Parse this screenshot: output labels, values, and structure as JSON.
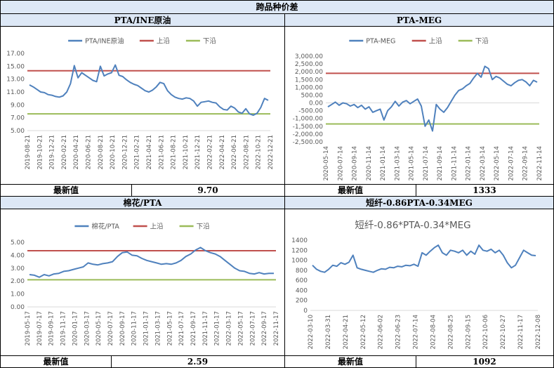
{
  "page_title": "跨品种价差",
  "chart_data": [
    {
      "id": "c1",
      "type": "line",
      "title": "PTA/INE原油",
      "header": "PTA/INE原油",
      "legend": [
        "PTA/INE原油",
        "上沿",
        "下沿"
      ],
      "legend_position": "top",
      "y_ticks": [
        "17.00",
        "15.00",
        "13.00",
        "11.00",
        "9.00",
        "7.00",
        "5.00"
      ],
      "ylim": [
        5,
        17
      ],
      "x_ticks": [
        "2019-08-21",
        "2019-10-21",
        "2019-12-21",
        "2020-02-21",
        "2020-04-21",
        "2020-06-21",
        "2020-08-21",
        "2020-10-21",
        "2020-12-21",
        "2021-02-21",
        "2021-04-21",
        "2021-06-21",
        "2021-08-21",
        "2021-10-21",
        "2021-12-21",
        "2022-02-21",
        "2022-04-21",
        "2022-06-21",
        "2022-08-21",
        "2022-10-21",
        "2022-12-21"
      ],
      "upper": 14.3,
      "lower": 7.6,
      "series": [
        {
          "name": "PTA/INE原油",
          "values": [
            12.1,
            11.8,
            11.4,
            11.0,
            10.9,
            10.6,
            10.5,
            10.3,
            10.2,
            10.4,
            11.0,
            12.3,
            15.1,
            13.2,
            14.0,
            13.6,
            13.2,
            12.8,
            12.6,
            15.0,
            13.5,
            13.8,
            14.0,
            15.2,
            13.6,
            13.4,
            12.9,
            12.5,
            12.2,
            12.0,
            11.6,
            11.2,
            11.0,
            11.3,
            11.8,
            12.5,
            12.3,
            11.2,
            10.6,
            10.2,
            10.0,
            9.9,
            10.1,
            10.0,
            9.6,
            8.8,
            9.4,
            9.5,
            9.6,
            9.4,
            9.3,
            8.7,
            8.3,
            8.2,
            8.8,
            8.5,
            7.9,
            7.7,
            8.4,
            7.6,
            7.4,
            7.7,
            8.6,
            10.0,
            9.7
          ]
        }
      ],
      "latest_label": "最新值",
      "latest_value": "9.70"
    },
    {
      "id": "c2",
      "type": "line",
      "title": "PTA-MEG",
      "header": "PTA-MEG",
      "legend": [
        "PTA-MEG",
        "上沿",
        "下沿"
      ],
      "legend_position": "top",
      "y_ticks": [
        "3,000.00",
        "2,500.00",
        "2,000.00",
        "1,500.00",
        "1,000.00",
        "500.00",
        "0.00",
        "-500.00",
        "-1,000.00",
        "-1,500.00",
        "-2,000.00",
        "-2,500.00"
      ],
      "ylim": [
        -2500,
        3000
      ],
      "x_ticks": [
        "2020-05-14",
        "2020-07-14",
        "2020-09-14",
        "2020-11-14",
        "2021-01-14",
        "2021-03-14",
        "2021-05-14",
        "2021-07-14",
        "2021-09-14",
        "2021-11-14",
        "2022-01-14",
        "2022-03-14",
        "2022-05-14",
        "2022-07-14",
        "2022-09-14",
        "2022-11-14"
      ],
      "upper": 1900,
      "lower": -1350,
      "series": [
        {
          "name": "PTA-MEG",
          "values": [
            -250,
            -100,
            50,
            -150,
            0,
            -50,
            -200,
            -100,
            -300,
            -150,
            -400,
            -250,
            -600,
            -500,
            -400,
            -1100,
            -500,
            -250,
            100,
            -200,
            50,
            150,
            -50,
            100,
            250,
            -200,
            -1500,
            -1100,
            -1800,
            -100,
            -400,
            -600,
            -300,
            100,
            500,
            800,
            900,
            1100,
            1250,
            1600,
            1900,
            1650,
            2350,
            2200,
            1500,
            1700,
            1600,
            1400,
            1200,
            1100,
            1300,
            1450,
            1500,
            1350,
            1100,
            1450,
            1333
          ]
        }
      ],
      "latest_label": "最新值",
      "latest_value": "1333"
    },
    {
      "id": "c3",
      "type": "line",
      "title": "棉花/PTA",
      "header": "棉花/PTA",
      "legend": [
        "棉花/PTA",
        "上沿",
        "下沿"
      ],
      "legend_position": "top",
      "y_ticks": [
        "5.00",
        "4.00",
        "3.00",
        "2.00",
        "1.00",
        "0.00"
      ],
      "ylim": [
        0,
        5
      ],
      "x_ticks": [
        "2019-05-17",
        "2019-07-17",
        "2019-09-17",
        "2019-11-17",
        "2020-01-17",
        "2020-03-17",
        "2020-05-17",
        "2020-07-17",
        "2020-09-17",
        "2020-11-17",
        "2021-01-17",
        "2021-03-17",
        "2021-05-17",
        "2021-07-17",
        "2021-09-17",
        "2021-11-17",
        "2022-01-17",
        "2022-03-17",
        "2022-05-17",
        "2022-07-17",
        "2022-09-17",
        "2022-11-17"
      ],
      "upper": 4.35,
      "lower": 2.1,
      "series": [
        {
          "name": "棉花/PTA",
          "values": [
            2.5,
            2.45,
            2.3,
            2.5,
            2.4,
            2.55,
            2.6,
            2.75,
            2.8,
            2.9,
            3.0,
            3.1,
            3.4,
            3.3,
            3.25,
            3.35,
            3.4,
            3.5,
            3.9,
            4.2,
            4.25,
            4.0,
            3.95,
            3.75,
            3.6,
            3.5,
            3.4,
            3.3,
            3.35,
            3.3,
            3.4,
            3.6,
            3.9,
            4.1,
            4.4,
            4.6,
            4.35,
            4.2,
            4.1,
            3.9,
            3.6,
            3.3,
            3.0,
            2.8,
            2.75,
            2.6,
            2.55,
            2.65,
            2.55,
            2.6,
            2.59
          ]
        }
      ],
      "latest_label": "最新值",
      "latest_value": "2.59"
    },
    {
      "id": "c4",
      "type": "line",
      "title": "短纤-0.86*PTA-0.34*MEG",
      "header": "短纤-0.86PTA-0.34MEG",
      "y_ticks": [
        "1400",
        "1200",
        "1000",
        "800",
        "600",
        "400",
        "200",
        "0"
      ],
      "ylim": [
        0,
        1400
      ],
      "x_ticks": [
        "2022-03-10",
        "2022-03-31",
        "2022-04-21",
        "2022-05-12",
        "2022-06-02",
        "2022-06-23",
        "2022-07-14",
        "2022-08-04",
        "2022-08-25",
        "2022-09-15",
        "2022-10-06",
        "2022-10-27",
        "2022-11-17",
        "2022-12-08"
      ],
      "series": [
        {
          "name": "",
          "values": [
            900,
            820,
            780,
            760,
            820,
            900,
            880,
            950,
            920,
            960,
            1100,
            850,
            820,
            800,
            780,
            760,
            800,
            830,
            820,
            860,
            850,
            880,
            870,
            900,
            890,
            920,
            880,
            1150,
            1100,
            1180,
            1250,
            1300,
            1150,
            1100,
            1200,
            1180,
            1150,
            1200,
            1100,
            1180,
            1120,
            1300,
            1200,
            1180,
            1220,
            1150,
            1200,
            1100,
            950,
            850,
            900,
            1050,
            1200,
            1150,
            1100,
            1092
          ]
        }
      ],
      "latest_label": "最新值",
      "latest_value": "1092"
    }
  ],
  "colors": {
    "series": "#4f81bd",
    "upper": "#c0504d",
    "lower": "#9bbb59",
    "header_bg": "#dde8f6"
  }
}
